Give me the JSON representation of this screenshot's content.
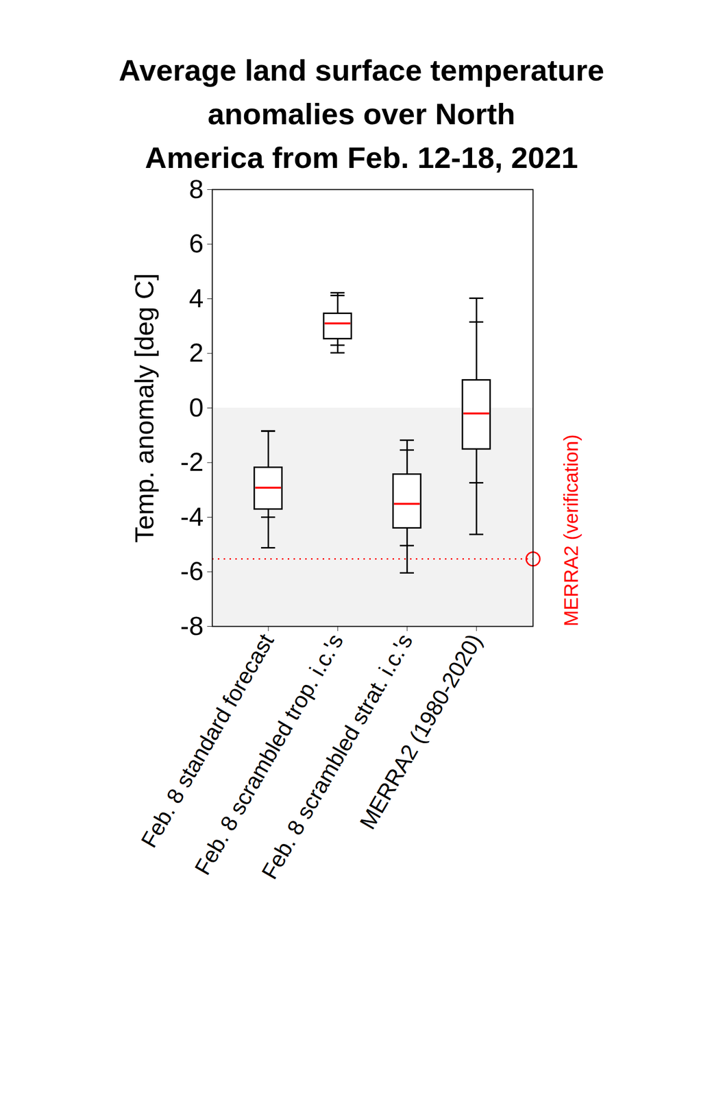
{
  "chart_data": {
    "type": "box",
    "title": "Average land surface temperature anomalies over North America from Feb. 12-18, 2021",
    "y_label": "Temp. anomaly [deg C]",
    "categories": [
      "Feb. 8 standard forecast",
      "Feb. 8 scrambled trop. i.c.'s",
      "Feb. 8 scrambled strat. i.c.'s",
      "MERRA2 (1980-2020)"
    ],
    "boxes": [
      {
        "min": -5.12,
        "p_low": -4.0,
        "q1": -3.71,
        "median": -2.92,
        "q3": -2.18,
        "p_high": -0.85,
        "max": -0.84
      },
      {
        "min": 2.02,
        "p_low": 2.3,
        "q1": 2.53,
        "median": 3.1,
        "q3": 3.46,
        "p_high": 4.12,
        "max": 4.22
      },
      {
        "min": -6.04,
        "p_low": -5.04,
        "q1": -4.4,
        "median": -3.51,
        "q3": -2.43,
        "p_high": -1.54,
        "max": -1.18
      },
      {
        "min": -4.63,
        "p_low": -2.74,
        "q1": -1.51,
        "median": -0.2,
        "q3": 1.02,
        "p_high": 3.15,
        "max": 4.02
      }
    ],
    "color": "#000000",
    "median_color": "#ff0000",
    "ylim": [
      -8,
      8
    ],
    "yticks": [
      -8,
      -6,
      -4,
      -2,
      0,
      2,
      4,
      6,
      8
    ],
    "grid": false,
    "shaded_region": [
      -8,
      0
    ],
    "reference": {
      "label": "MERRA2 (verification)",
      "value": -5.53,
      "color": "#ff0000",
      "line_style": "dotted",
      "marker": "circle"
    }
  }
}
